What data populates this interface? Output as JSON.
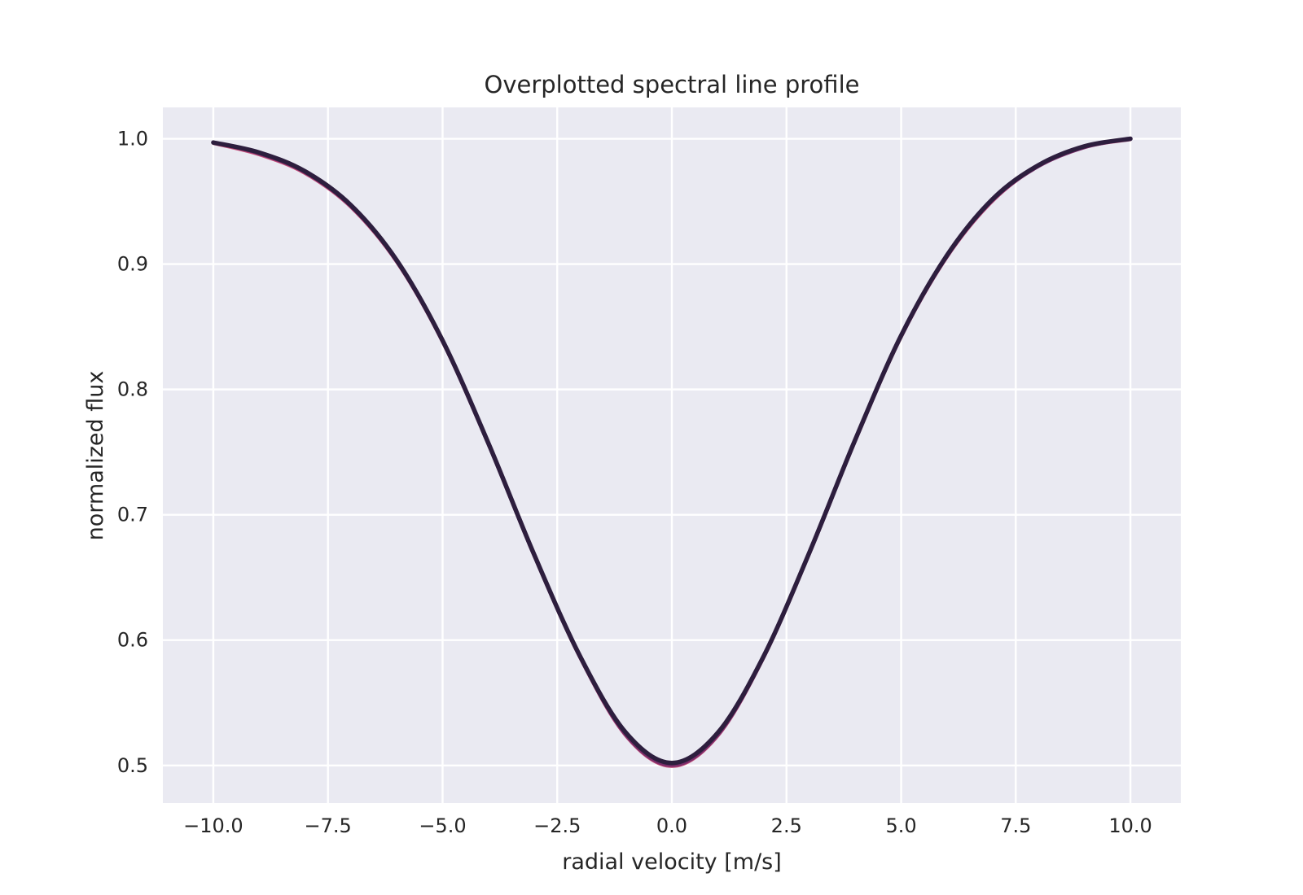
{
  "colors": {
    "figure_background": "#ffffff",
    "axes_background": "#eaeaf2",
    "grid": "#ffffff",
    "text": "#262626"
  },
  "chart_data": {
    "type": "line",
    "title": "Overplotted spectral line profile",
    "xlabel": "radial velocity [m/s]",
    "ylabel": "normalized flux",
    "xlim": [
      -11.1,
      11.1
    ],
    "ylim": [
      0.47,
      1.025
    ],
    "xticks": [
      -10.0,
      -7.5,
      -5.0,
      -2.5,
      0.0,
      2.5,
      5.0,
      7.5,
      10.0
    ],
    "xtick_labels": [
      "−10.0",
      "−7.5",
      "−5.0",
      "−2.5",
      "0.0",
      "2.5",
      "5.0",
      "7.5",
      "10.0"
    ],
    "yticks": [
      0.5,
      0.6,
      0.7,
      0.8,
      0.9,
      1.0
    ],
    "ytick_labels": [
      "0.5",
      "0.6",
      "0.7",
      "0.8",
      "0.9",
      "1.0"
    ],
    "grid": true,
    "legend": "none",
    "series": [
      {
        "color": "#c44e7a",
        "x": [
          -10.0,
          -9.0,
          -8.0,
          -7.0,
          -6.0,
          -5.0,
          -4.0,
          -3.0,
          -2.0,
          -1.0,
          0.0,
          1.0,
          2.0,
          3.0,
          4.0,
          5.0,
          6.0,
          7.0,
          8.0,
          9.0,
          10.0
        ],
        "y": [
          0.996,
          0.987,
          0.972,
          0.945,
          0.901,
          0.837,
          0.755,
          0.666,
          0.585,
          0.523,
          0.499,
          0.523,
          0.585,
          0.668,
          0.758,
          0.841,
          0.905,
          0.95,
          0.978,
          0.993,
          0.999
        ]
      },
      {
        "color": "#7b2d6a",
        "x": [
          -10.0,
          -9.0,
          -8.0,
          -7.0,
          -6.0,
          -5.0,
          -4.0,
          -3.0,
          -2.0,
          -1.0,
          0.0,
          1.0,
          2.0,
          3.0,
          4.0,
          5.0,
          6.0,
          7.0,
          8.0,
          9.0,
          10.0
        ],
        "y": [
          0.997,
          0.988,
          0.973,
          0.946,
          0.902,
          0.838,
          0.756,
          0.667,
          0.586,
          0.524,
          0.5,
          0.524,
          0.586,
          0.669,
          0.759,
          0.842,
          0.906,
          0.951,
          0.978,
          0.993,
          1.0
        ]
      },
      {
        "color": "#2d1e3e",
        "x": [
          -10.0,
          -9.0,
          -8.0,
          -7.0,
          -6.0,
          -5.0,
          -4.0,
          -3.0,
          -2.0,
          -1.0,
          0.0,
          1.0,
          2.0,
          3.0,
          4.0,
          5.0,
          6.0,
          7.0,
          8.0,
          9.0,
          10.0
        ],
        "y": [
          0.997,
          0.989,
          0.974,
          0.947,
          0.903,
          0.839,
          0.757,
          0.668,
          0.587,
          0.526,
          0.502,
          0.526,
          0.587,
          0.67,
          0.76,
          0.843,
          0.907,
          0.952,
          0.979,
          0.994,
          1.0
        ]
      }
    ]
  }
}
